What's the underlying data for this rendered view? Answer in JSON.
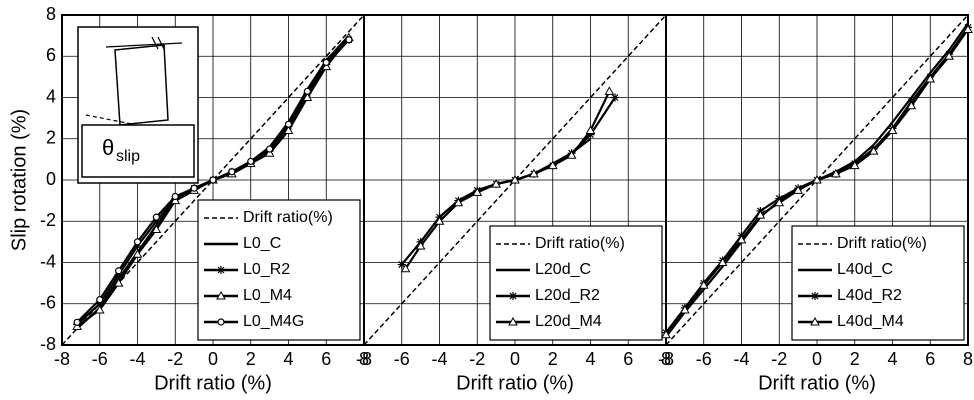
{
  "chart_data": [
    {
      "type": "line",
      "x_label": "Drift ratio (%)",
      "y_label": "Slip rotation (%)",
      "xlim": [
        -8,
        8
      ],
      "ylim": [
        -8,
        8
      ],
      "xticks": [
        -8,
        -6,
        -4,
        -2,
        0,
        2,
        4,
        6,
        8
      ],
      "yticks": [
        -8,
        -6,
        -4,
        -2,
        0,
        2,
        4,
        6,
        8
      ],
      "ytick_labels": true,
      "grid": true,
      "legend": "lower right",
      "annotation": {
        "symbol": "θ",
        "subscript": "slip"
      },
      "series": [
        {
          "name": "Drift ratio(%)",
          "color": "#000000",
          "line_style": "dashed",
          "marker": "none",
          "x": [
            -8,
            8
          ],
          "values": [
            -8,
            8
          ]
        },
        {
          "name": "L0_C",
          "color": "#000000",
          "line_style": "solid",
          "marker": "none",
          "x": [
            -7.2,
            -6,
            -5,
            -4,
            -3,
            -2,
            -1,
            0,
            1,
            2,
            3,
            4,
            5,
            6,
            7.2
          ],
          "values": [
            -7.2,
            -6.2,
            -4.8,
            -3.5,
            -2.2,
            -1.0,
            -0.5,
            0,
            0.4,
            0.9,
            1.6,
            2.8,
            4.4,
            5.8,
            7.0
          ]
        },
        {
          "name": "L0_R2",
          "color": "#000000",
          "line_style": "solid",
          "marker": "plus",
          "x": [
            -7.2,
            -6,
            -5,
            -4,
            -3,
            -2,
            -1,
            0,
            1,
            2,
            3,
            4,
            5,
            6,
            7.2
          ],
          "values": [
            -7.0,
            -6.0,
            -4.6,
            -3.2,
            -2.0,
            -0.9,
            -0.4,
            0,
            0.4,
            0.8,
            1.4,
            2.6,
            4.2,
            5.6,
            6.8
          ]
        },
        {
          "name": "L0_M4",
          "color": "#000000",
          "line_style": "solid",
          "marker": "triangle",
          "x": [
            -7.2,
            -6,
            -5,
            -4,
            -3,
            -2,
            -1,
            0,
            1,
            2,
            3,
            4,
            5,
            6,
            7.2
          ],
          "values": [
            -7.1,
            -6.3,
            -5.0,
            -3.6,
            -2.4,
            -1.0,
            -0.5,
            0,
            0.3,
            0.8,
            1.3,
            2.4,
            4.0,
            5.5,
            6.9
          ]
        },
        {
          "name": "L0_M4G",
          "color": "#000000",
          "line_style": "solid",
          "marker": "circle",
          "x": [
            -7.2,
            -6,
            -5,
            -4,
            -3,
            -2,
            -1,
            0,
            1,
            2,
            3,
            4,
            5,
            6,
            7.2
          ],
          "values": [
            -6.9,
            -5.8,
            -4.4,
            -3.0,
            -1.8,
            -0.8,
            -0.4,
            0,
            0.4,
            0.9,
            1.5,
            2.7,
            4.3,
            5.7,
            6.8
          ]
        }
      ]
    },
    {
      "type": "line",
      "x_label": "Drift ratio (%)",
      "xlim": [
        -8,
        8
      ],
      "ylim": [
        -8,
        8
      ],
      "xticks": [
        -8,
        -6,
        -4,
        -2,
        0,
        2,
        4,
        6,
        8
      ],
      "yticks": [
        -8,
        -6,
        -4,
        -2,
        0,
        2,
        4,
        6,
        8
      ],
      "ytick_labels": false,
      "grid": true,
      "legend": "lower right",
      "series": [
        {
          "name": "Drift ratio(%)",
          "color": "#000000",
          "line_style": "dashed",
          "marker": "none",
          "x": [
            -8,
            8
          ],
          "values": [
            -8,
            8
          ]
        },
        {
          "name": "L20d_C",
          "color": "#000000",
          "line_style": "solid",
          "marker": "none",
          "x": [
            -4,
            -3,
            -2,
            -1,
            0,
            1,
            2,
            3,
            4
          ],
          "values": [
            -1.8,
            -1.0,
            -0.5,
            -0.2,
            0,
            0.3,
            0.8,
            1.3,
            2.0
          ]
        },
        {
          "name": "L20d_R2",
          "color": "#000000",
          "line_style": "solid",
          "marker": "plus",
          "x": [
            -6,
            -5,
            -4,
            -3,
            -2,
            -1,
            0,
            1,
            2,
            3,
            4,
            5.3
          ],
          "values": [
            -4.1,
            -3.0,
            -1.8,
            -1.0,
            -0.5,
            -0.2,
            0,
            0.3,
            0.7,
            1.3,
            2.2,
            4.0
          ]
        },
        {
          "name": "L20d_M4",
          "color": "#000000",
          "line_style": "solid",
          "marker": "triangle",
          "x": [
            -5.8,
            -5,
            -4,
            -3,
            -2,
            -1,
            0,
            1,
            2,
            3,
            4,
            5
          ],
          "values": [
            -4.3,
            -3.2,
            -2.0,
            -1.1,
            -0.6,
            -0.2,
            0,
            0.3,
            0.7,
            1.2,
            2.4,
            4.3
          ]
        }
      ]
    },
    {
      "type": "line",
      "x_label": "Drift ratio (%)",
      "xlim": [
        -8,
        8
      ],
      "ylim": [
        -8,
        8
      ],
      "xticks": [
        -8,
        -6,
        -4,
        -2,
        0,
        2,
        4,
        6,
        8
      ],
      "yticks": [
        -8,
        -6,
        -4,
        -2,
        0,
        2,
        4,
        6,
        8
      ],
      "ytick_labels": false,
      "grid": true,
      "legend": "lower right",
      "series": [
        {
          "name": "Drift ratio(%)",
          "color": "#000000",
          "line_style": "dashed",
          "marker": "none",
          "x": [
            -8,
            8
          ],
          "values": [
            -8,
            8
          ]
        },
        {
          "name": "L40d_C",
          "color": "#000000",
          "line_style": "solid",
          "marker": "none",
          "x": [
            -8,
            -7,
            -6,
            -5,
            -4,
            -3,
            -2,
            -1,
            0,
            1,
            2,
            3,
            4,
            5,
            6,
            7,
            8
          ],
          "values": [
            -7.6,
            -6.4,
            -5.3,
            -4.2,
            -3.0,
            -1.8,
            -1.0,
            -0.4,
            0,
            0.4,
            0.9,
            1.7,
            2.8,
            4.0,
            5.2,
            6.3,
            7.6
          ]
        },
        {
          "name": "L40d_R2",
          "color": "#000000",
          "line_style": "solid",
          "marker": "plus",
          "x": [
            -8,
            -7,
            -6,
            -5,
            -4,
            -3,
            -2,
            -1,
            0,
            1,
            2,
            3,
            4,
            5,
            6,
            7,
            8
          ],
          "values": [
            -7.4,
            -6.2,
            -5.0,
            -3.9,
            -2.7,
            -1.5,
            -0.9,
            -0.4,
            0,
            0.3,
            0.8,
            1.5,
            2.5,
            3.8,
            5.0,
            6.1,
            7.4
          ]
        },
        {
          "name": "L40d_M4",
          "color": "#000000",
          "line_style": "solid",
          "marker": "triangle",
          "x": [
            -8,
            -7,
            -6,
            -5,
            -4,
            -3,
            -2,
            -1,
            0,
            1,
            2,
            3,
            4,
            5,
            6,
            7,
            8
          ],
          "values": [
            -7.5,
            -6.3,
            -5.1,
            -4.0,
            -2.9,
            -1.7,
            -1.1,
            -0.5,
            0,
            0.3,
            0.7,
            1.4,
            2.4,
            3.6,
            4.9,
            6.0,
            7.3
          ]
        }
      ]
    }
  ]
}
